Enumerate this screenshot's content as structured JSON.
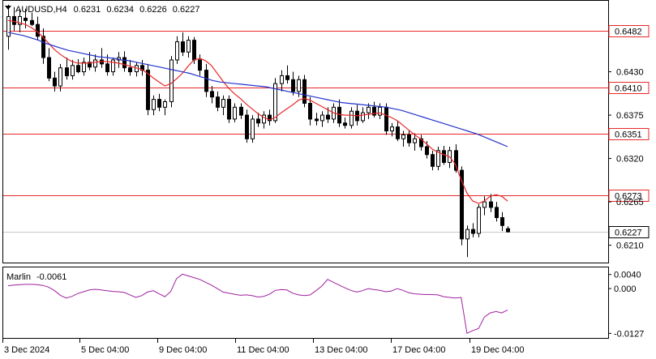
{
  "header": {
    "symbol": "AUDUSD,H4",
    "open": "0.6231",
    "high": "0.6234",
    "low": "0.6226",
    "close": "0.6227"
  },
  "indicator": {
    "name": "Marlin",
    "value": "-0.0061"
  },
  "colors": {
    "bull_body": "#ffffff",
    "bear_body": "#000000",
    "ma_fast": "#e8282a",
    "ma_slow": "#2433cc",
    "levels": "#e8282a",
    "oscillator": "#a020a0",
    "price_tag_bg": "#ffffff"
  },
  "chart_data": [
    {
      "type": "candlestick",
      "title": "AUDUSD,H4",
      "ylim": [
        0.6188,
        0.652
      ],
      "y_ticks": [
        "0.6430",
        "0.6375",
        "0.6320",
        "0.6265",
        "0.6210"
      ],
      "x_ticks": [
        "3 Dec 2024",
        "5 Dec 04:00",
        "9 Dec 04:00",
        "11 Dec 04:00",
        "13 Dec 04:00",
        "17 Dec 04:00",
        "19 Dec 04:00"
      ],
      "levels": [
        {
          "label": "0.6482",
          "value": 0.6482
        },
        {
          "label": "0.6410",
          "value": 0.641
        },
        {
          "label": "0.6351",
          "value": 0.6351
        },
        {
          "label": "0.6273",
          "value": 0.6273
        }
      ],
      "current_price": {
        "label": "0.6227",
        "value": 0.6227
      },
      "ohlc": [
        [
          0.6475,
          0.6515,
          0.6458,
          0.65
        ],
        [
          0.65,
          0.6512,
          0.6482,
          0.649
        ],
        [
          0.649,
          0.6508,
          0.648,
          0.65
        ],
        [
          0.6498,
          0.651,
          0.6485,
          0.6495
        ],
        [
          0.6495,
          0.6505,
          0.6488,
          0.649
        ],
        [
          0.649,
          0.65,
          0.647,
          0.6475
        ],
        [
          0.6475,
          0.6485,
          0.644,
          0.6448
        ],
        [
          0.6448,
          0.646,
          0.6418,
          0.6422
        ],
        [
          0.6422,
          0.643,
          0.6405,
          0.6412
        ],
        [
          0.6412,
          0.644,
          0.6405,
          0.6435
        ],
        [
          0.6435,
          0.6448,
          0.642,
          0.6425
        ],
        [
          0.6425,
          0.6445,
          0.642,
          0.6438
        ],
        [
          0.6438,
          0.6446,
          0.6428,
          0.643
        ],
        [
          0.643,
          0.6448,
          0.6425,
          0.6442
        ],
        [
          0.6442,
          0.6455,
          0.6432,
          0.6436
        ],
        [
          0.6436,
          0.6452,
          0.643,
          0.6445
        ],
        [
          0.6445,
          0.646,
          0.6435,
          0.644
        ],
        [
          0.644,
          0.6452,
          0.6425,
          0.643
        ],
        [
          0.643,
          0.6448,
          0.6425,
          0.6445
        ],
        [
          0.6445,
          0.6455,
          0.6435,
          0.6448
        ],
        [
          0.6448,
          0.6456,
          0.643,
          0.6435
        ],
        [
          0.6435,
          0.6445,
          0.6425,
          0.643
        ],
        [
          0.643,
          0.6442,
          0.6424,
          0.6438
        ],
        [
          0.6438,
          0.6445,
          0.6425,
          0.6432
        ],
        [
          0.6432,
          0.644,
          0.6375,
          0.6382
        ],
        [
          0.6382,
          0.64,
          0.6375,
          0.6395
        ],
        [
          0.6395,
          0.6402,
          0.638,
          0.6385
        ],
        [
          0.6385,
          0.6395,
          0.6375,
          0.6392
        ],
        [
          0.6392,
          0.645,
          0.6385,
          0.6445
        ],
        [
          0.6445,
          0.6475,
          0.644,
          0.6468
        ],
        [
          0.6468,
          0.648,
          0.645,
          0.6455
        ],
        [
          0.6455,
          0.6475,
          0.6448,
          0.647
        ],
        [
          0.647,
          0.6474,
          0.644,
          0.6445
        ],
        [
          0.6445,
          0.6452,
          0.6425,
          0.6432
        ],
        [
          0.6432,
          0.644,
          0.6398,
          0.6405
        ],
        [
          0.6405,
          0.6412,
          0.639,
          0.6398
        ],
        [
          0.6398,
          0.6405,
          0.638,
          0.6385
        ],
        [
          0.6385,
          0.64,
          0.6375,
          0.6395
        ],
        [
          0.6395,
          0.64,
          0.6365,
          0.637
        ],
        [
          0.637,
          0.639,
          0.6366,
          0.6385
        ],
        [
          0.6385,
          0.639,
          0.637,
          0.6375
        ],
        [
          0.6375,
          0.6382,
          0.634,
          0.6345
        ],
        [
          0.6345,
          0.6375,
          0.634,
          0.637
        ],
        [
          0.637,
          0.6378,
          0.636,
          0.6365
        ],
        [
          0.6365,
          0.638,
          0.6358,
          0.6375
        ],
        [
          0.6375,
          0.6382,
          0.6362,
          0.6368
        ],
        [
          0.6368,
          0.6422,
          0.6365,
          0.6415
        ],
        [
          0.6415,
          0.6432,
          0.6405,
          0.6425
        ],
        [
          0.6425,
          0.6438,
          0.6415,
          0.642
        ],
        [
          0.642,
          0.643,
          0.64,
          0.6405
        ],
        [
          0.6405,
          0.6425,
          0.6398,
          0.642
        ],
        [
          0.642,
          0.6426,
          0.6385,
          0.639
        ],
        [
          0.639,
          0.6398,
          0.6362,
          0.637
        ],
        [
          0.637,
          0.6378,
          0.6362,
          0.6368
        ],
        [
          0.6368,
          0.638,
          0.636,
          0.6375
        ],
        [
          0.6375,
          0.6385,
          0.6365,
          0.637
        ],
        [
          0.637,
          0.639,
          0.6365,
          0.6385
        ],
        [
          0.6385,
          0.6395,
          0.636,
          0.6365
        ],
        [
          0.6365,
          0.6372,
          0.6358,
          0.6362
        ],
        [
          0.6362,
          0.6385,
          0.6358,
          0.638
        ],
        [
          0.638,
          0.6388,
          0.6362,
          0.6368
        ],
        [
          0.6368,
          0.6385,
          0.6365,
          0.6378
        ],
        [
          0.6378,
          0.639,
          0.637,
          0.6385
        ],
        [
          0.6385,
          0.6392,
          0.6372,
          0.6375
        ],
        [
          0.6375,
          0.639,
          0.637,
          0.6385
        ],
        [
          0.6385,
          0.639,
          0.635,
          0.6355
        ],
        [
          0.6355,
          0.6365,
          0.6348,
          0.636
        ],
        [
          0.636,
          0.6368,
          0.6342,
          0.6345
        ],
        [
          0.6345,
          0.6355,
          0.6335,
          0.635
        ],
        [
          0.635,
          0.6355,
          0.6335,
          0.634
        ],
        [
          0.634,
          0.6352,
          0.633,
          0.6345
        ],
        [
          0.6345,
          0.635,
          0.633,
          0.6335
        ],
        [
          0.6335,
          0.6342,
          0.632,
          0.6325
        ],
        [
          0.6325,
          0.633,
          0.6305,
          0.631
        ],
        [
          0.631,
          0.6335,
          0.6305,
          0.633
        ],
        [
          0.633,
          0.6336,
          0.6312,
          0.6315
        ],
        [
          0.6315,
          0.6335,
          0.6308,
          0.633
        ],
        [
          0.633,
          0.6338,
          0.6302,
          0.6305
        ],
        [
          0.6305,
          0.631,
          0.621,
          0.6218
        ],
        [
          0.6218,
          0.6235,
          0.6195,
          0.623
        ],
        [
          0.623,
          0.6238,
          0.622,
          0.6225
        ],
        [
          0.6225,
          0.6262,
          0.622,
          0.6258
        ],
        [
          0.6258,
          0.6272,
          0.6248,
          0.6265
        ],
        [
          0.6265,
          0.6275,
          0.6252,
          0.6258
        ],
        [
          0.6258,
          0.6265,
          0.624,
          0.6245
        ],
        [
          0.6245,
          0.6252,
          0.6228,
          0.6235
        ],
        [
          0.6231,
          0.6234,
          0.6226,
          0.6227
        ]
      ],
      "ma_fast": [
        0.6495,
        0.6494,
        0.6492,
        0.649,
        0.6486,
        0.6481,
        0.6474,
        0.6466,
        0.6458,
        0.6452,
        0.6447,
        0.6443,
        0.6441,
        0.6441,
        0.6441,
        0.6442,
        0.6443,
        0.6443,
        0.6442,
        0.6441,
        0.6439,
        0.6437,
        0.6435,
        0.6433,
        0.6428,
        0.6422,
        0.6417,
        0.6412,
        0.6415,
        0.6421,
        0.6428,
        0.6437,
        0.6445,
        0.6447,
        0.6444,
        0.6438,
        0.6428,
        0.6418,
        0.6409,
        0.6402,
        0.6396,
        0.6389,
        0.6383,
        0.6377,
        0.6372,
        0.6369,
        0.6372,
        0.6378,
        0.6383,
        0.6388,
        0.6394,
        0.6396,
        0.6394,
        0.639,
        0.6386,
        0.6382,
        0.6378,
        0.6376,
        0.6375,
        0.6375,
        0.6374,
        0.6375,
        0.6376,
        0.6377,
        0.6378,
        0.6375,
        0.6372,
        0.6368,
        0.6362,
        0.6356,
        0.635,
        0.6345,
        0.6339,
        0.6332,
        0.6328,
        0.6325,
        0.6322,
        0.6313,
        0.6293,
        0.6276,
        0.6266,
        0.6263,
        0.6266,
        0.6272,
        0.6274,
        0.6272,
        0.6266
      ],
      "ma_slow_x_range": [
        0,
        86
      ],
      "ma_slow": [
        0.648,
        0.6478,
        0.6476,
        0.6473,
        0.647,
        0.6466,
        0.6463,
        0.646,
        0.6457,
        0.6455,
        0.6453,
        0.6451,
        0.6449,
        0.6448,
        0.6447,
        0.6445,
        0.6444,
        0.6442,
        0.644,
        0.6438,
        0.6436,
        0.6434,
        0.6432,
        0.643,
        0.6428,
        0.6425,
        0.6422,
        0.6419,
        0.6417,
        0.6416,
        0.6415,
        0.6414,
        0.6413,
        0.6412,
        0.6411,
        0.6409,
        0.6407,
        0.6405,
        0.6403,
        0.6401,
        0.6399,
        0.6397,
        0.6395,
        0.6393,
        0.6391,
        0.639,
        0.6389,
        0.6388,
        0.6387,
        0.6386,
        0.6385,
        0.6383,
        0.6381,
        0.6378,
        0.6375,
        0.6372,
        0.6369,
        0.6366,
        0.6363,
        0.636,
        0.6357,
        0.6354,
        0.6351,
        0.6347,
        0.6343,
        0.6339,
        0.6335
      ]
    },
    {
      "type": "line",
      "title": "Marlin -0.0061",
      "ylim": [
        -0.014,
        0.006
      ],
      "y_ticks": [
        "0.0040",
        "0.000",
        "-0.0127"
      ],
      "series": [
        {
          "name": "Marlin",
          "values": [
            0.0008,
            0.001,
            0.0011,
            0.0012,
            0.0012,
            0.0011,
            0.0009,
            0.0004,
            -0.0006,
            -0.0019,
            -0.0027,
            -0.0022,
            -0.0014,
            -0.0009,
            -0.0004,
            -0.0002,
            -0.0004,
            -0.0006,
            -0.0008,
            -0.0009,
            -0.0011,
            -0.0018,
            -0.0025,
            -0.002,
            -0.001,
            -0.0006,
            -0.0015,
            -0.0023,
            -0.0008,
            0.0028,
            0.0041,
            0.0036,
            0.0031,
            0.0026,
            0.0018,
            0.001,
            0.0,
            -0.001,
            -0.0013,
            -0.0016,
            -0.0019,
            -0.0018,
            -0.002,
            -0.0024,
            -0.0022,
            -0.0016,
            -0.0005,
            -0.0003,
            -0.0004,
            -0.0013,
            -0.0018,
            -0.002,
            -0.0018,
            -0.0006,
            0.0007,
            0.0026,
            0.0018,
            0.001,
            0.0002,
            -0.0005,
            -0.001,
            -0.0006,
            0.0,
            -0.0003,
            -0.0005,
            -0.0009,
            -0.0007,
            0.0,
            -0.0005,
            -0.0012,
            -0.0015,
            -0.0016,
            -0.0017,
            -0.0017,
            -0.0018,
            -0.0023,
            -0.0025,
            -0.0027,
            -0.0025,
            -0.0127,
            -0.0119,
            -0.0113,
            -0.0081,
            -0.0069,
            -0.0065,
            -0.0069,
            -0.0061
          ]
        }
      ]
    }
  ]
}
